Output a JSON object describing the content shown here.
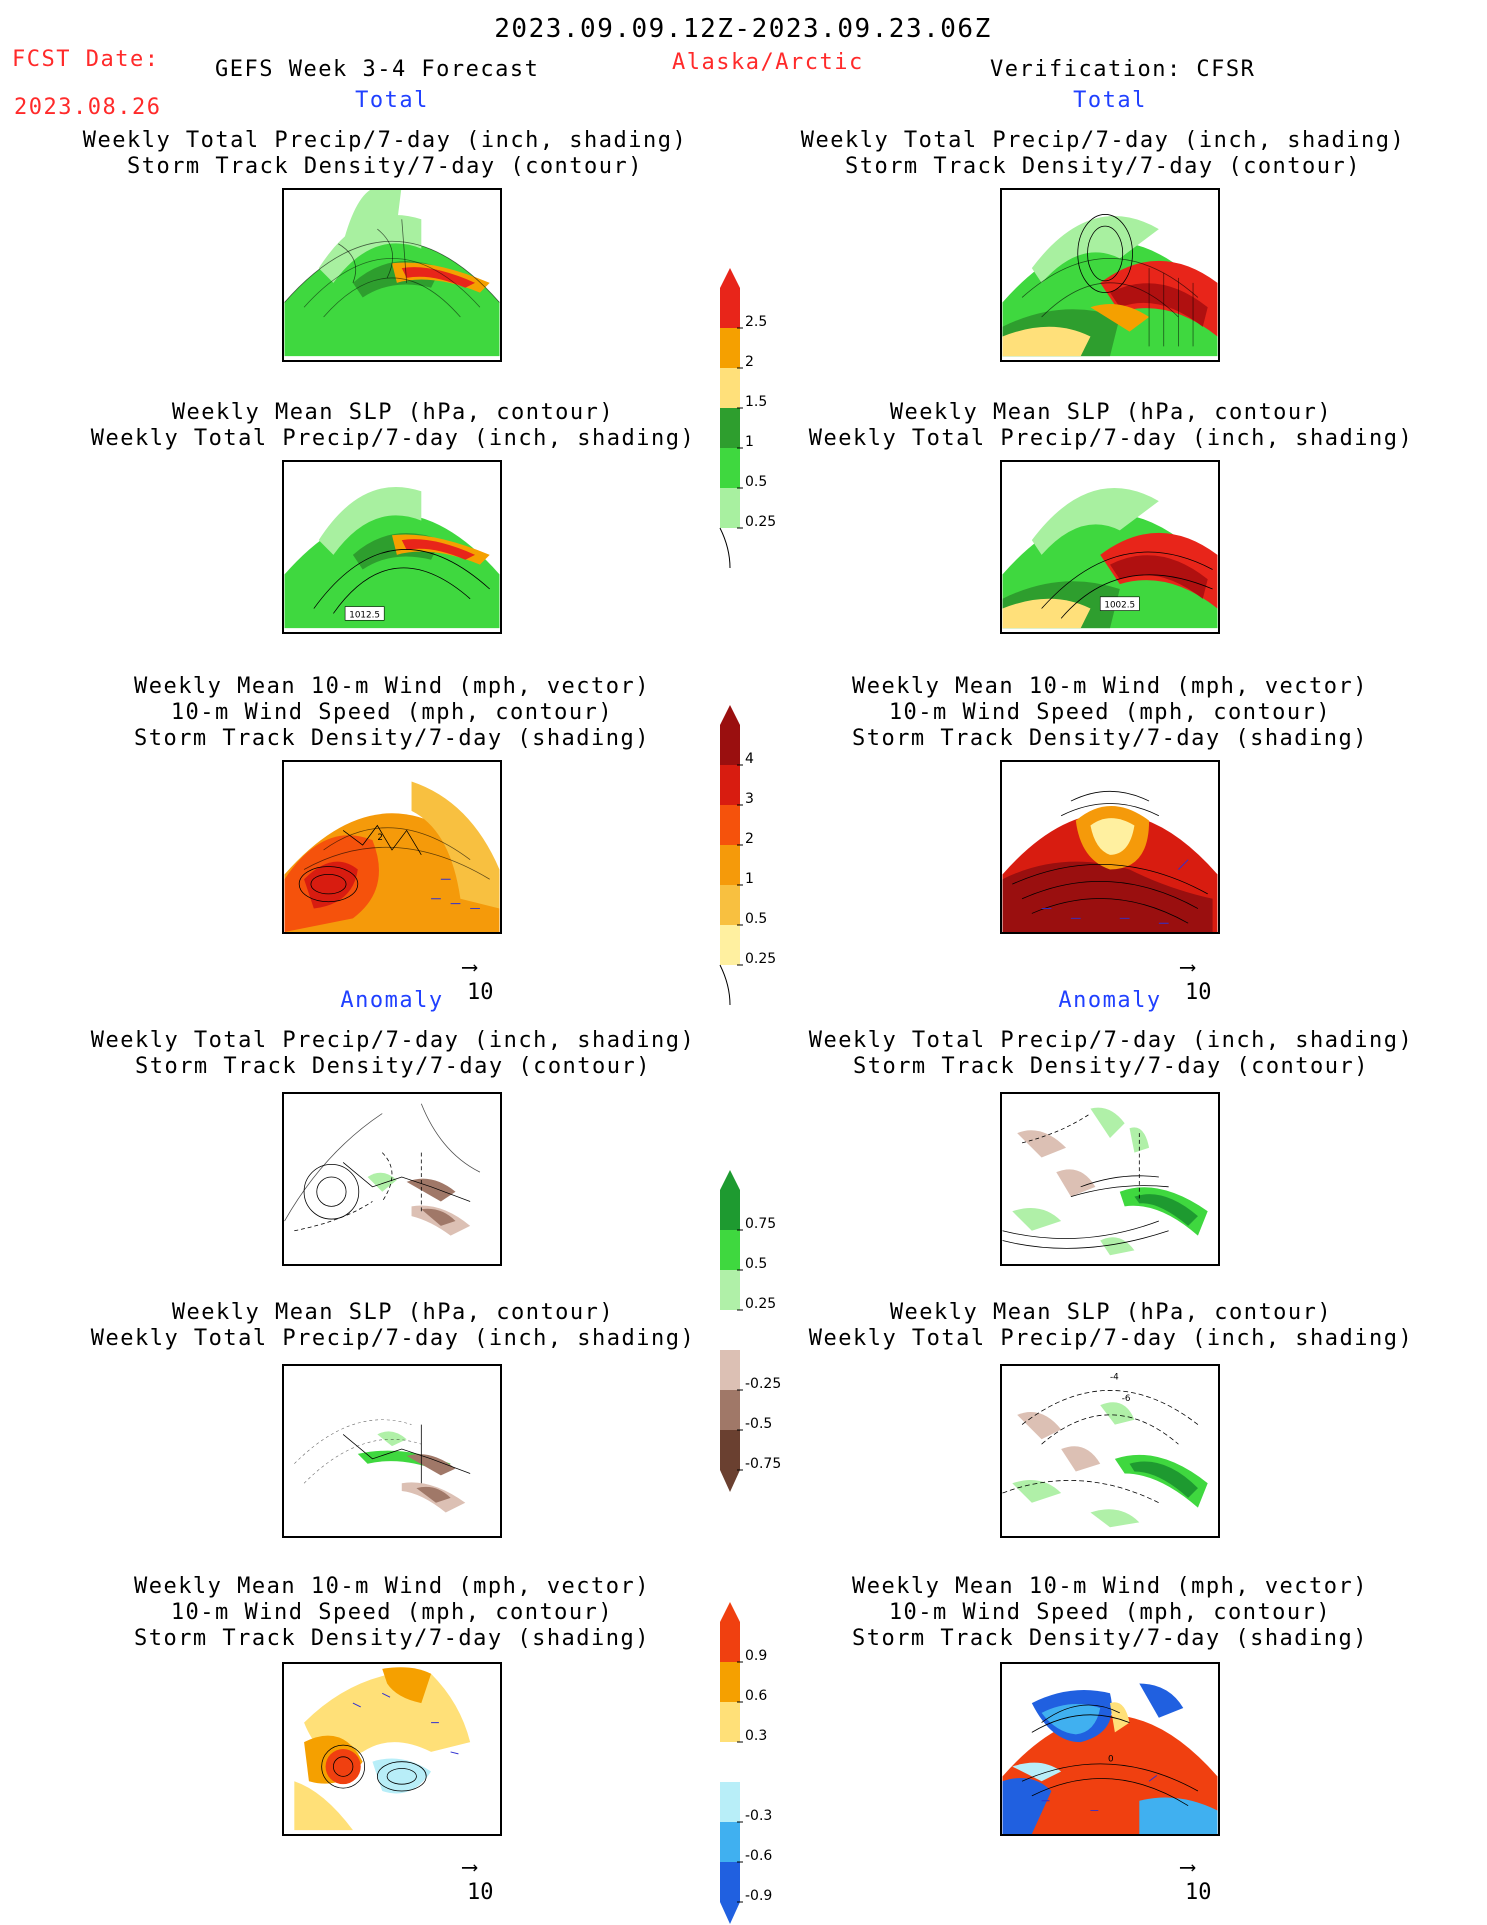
{
  "header": {
    "date_range": "2023.09.09.12Z-2023.09.23.06Z",
    "fcst_label": "FCST Date:",
    "fcst_date": "2023.08.26",
    "product": "GEFS Week 3-4 Forecast",
    "region": "Alaska/Arctic",
    "verification": "Verification: CFSR"
  },
  "sections": {
    "total": "Total",
    "anomaly": "Anomaly"
  },
  "titles": {
    "precip_track": [
      "Weekly Total Precip/7-day (inch, shading)",
      "Storm Track Density/7-day (contour)"
    ],
    "slp_precip": [
      "Weekly Mean SLP (hPa, contour)",
      "Weekly Total Precip/7-day (inch, shading)"
    ],
    "wind_track": [
      "Weekly Mean 10-m Wind (mph, vector)",
      "10-m Wind Speed (mph, contour)",
      "Storm Track Density/7-day (shading)"
    ]
  },
  "contour_labels": {
    "fcst_slp": "1012.5",
    "cfsr_slp": "1002.5",
    "fcst_wind": "2",
    "cfsr_slp_anom_1": "-4",
    "cfsr_slp_anom_2": "-6",
    "cfsr_wind_anom": "0"
  },
  "vector_ref": "10",
  "colorbars": {
    "precip_total": {
      "labels": [
        "2.5",
        "2",
        "1.5",
        "1",
        "0.5",
        "0.25"
      ],
      "colors": [
        "#e8251a",
        "#f5a000",
        "#ffe07a",
        "#2e9e2e",
        "#3fd83f",
        "#a8f0a0"
      ]
    },
    "track_total": {
      "labels": [
        "4",
        "3",
        "2",
        "1",
        "0.5",
        "0.25"
      ],
      "colors": [
        "#9a0f0f",
        "#d81c10",
        "#f5520c",
        "#f59a0a",
        "#f8c040",
        "#fff0a0"
      ]
    },
    "precip_anom": {
      "labels": [
        "0.75",
        "0.5",
        "0.25",
        "-0.25",
        "-0.5",
        "-0.75"
      ],
      "colors": [
        "#1e9a30",
        "#3fd83f",
        "#b0f0a8",
        "#ffffff",
        "#dcc0b4",
        "#a07868",
        "#6a4030"
      ]
    },
    "track_anom": {
      "labels": [
        "0.9",
        "0.6",
        "0.3",
        "-0.3",
        "-0.6",
        "-0.9"
      ],
      "colors": [
        "#f04010",
        "#f5a000",
        "#ffe078",
        "#ffffff",
        "#b8eef8",
        "#40b0f0",
        "#2060e0"
      ]
    }
  }
}
